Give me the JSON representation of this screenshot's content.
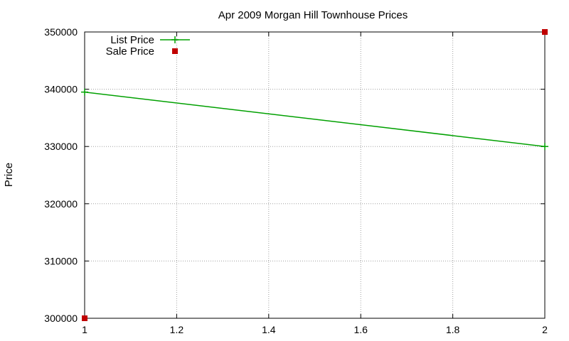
{
  "chart_data": {
    "type": "line",
    "title": "Apr 2009 Morgan Hill Townhouse Prices",
    "xlabel": "",
    "ylabel": "Price",
    "xlim": [
      1,
      2
    ],
    "ylim": [
      300000,
      350000
    ],
    "xticks": [
      "1",
      "1.2",
      "1.4",
      "1.6",
      "1.8",
      "2"
    ],
    "yticks": [
      "300000",
      "310000",
      "320000",
      "330000",
      "340000",
      "350000"
    ],
    "grid": true,
    "legend_position": "top-left",
    "series": [
      {
        "name": "List Price",
        "style": "linespoints",
        "color": "#00a000",
        "x": [
          1,
          2
        ],
        "y": [
          339500,
          330000
        ]
      },
      {
        "name": "Sale Price",
        "style": "points",
        "color": "#c00000",
        "x": [
          1,
          2
        ],
        "y": [
          300000,
          350000
        ]
      }
    ]
  }
}
